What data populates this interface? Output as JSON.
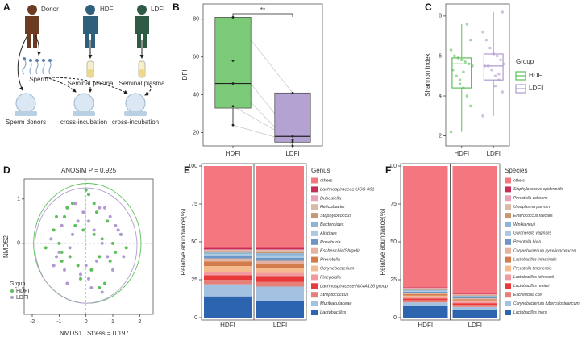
{
  "diagram": {
    "panel": "A",
    "nodes": [
      {
        "label": "Donor"
      },
      {
        "label": "HDFI"
      },
      {
        "label": "LDFI"
      },
      {
        "label": "Sperm"
      },
      {
        "label": "Seminal plasma"
      },
      {
        "label": "Seminal plasma"
      },
      {
        "label": "Sperm donors"
      },
      {
        "label": "cross-incubation"
      },
      {
        "label": "cross-incubation"
      }
    ]
  },
  "chart_data": [
    {
      "panel": "B",
      "type": "box",
      "box_style": "filled",
      "y_label": "DFI",
      "categories": [
        "HDFI",
        "LDFI"
      ],
      "colors": [
        "#7ccb78",
        "#b4a2d2"
      ],
      "boxes": [
        {
          "min": 24,
          "q1": 33,
          "median": 46,
          "q3": 81,
          "max": 81
        },
        {
          "min": 13,
          "q1": 15,
          "median": 18,
          "q3": 41,
          "max": 41
        }
      ],
      "points": [
        [
          81,
          58,
          46,
          34,
          24
        ],
        [
          41,
          18,
          13,
          16,
          15
        ]
      ],
      "paired": true,
      "significance": "**",
      "ylim": [
        13,
        88
      ],
      "yticks": [
        20,
        40,
        60,
        80
      ]
    },
    {
      "panel": "C",
      "type": "box",
      "box_style": "outline",
      "y_label": "Shannon index",
      "categories": [
        "HDFI",
        "LDFI"
      ],
      "colors": [
        "#5cbf5a",
        "#b09ad0"
      ],
      "boxes": [
        {
          "min": 2.2,
          "q1": 4.4,
          "median": 5.6,
          "q3": 5.9,
          "max": 7.6
        },
        {
          "min": 3.0,
          "q1": 4.8,
          "median": 5.5,
          "q3": 6.1,
          "max": 8.2
        }
      ],
      "points": [
        [
          2.2,
          3.5,
          4.0,
          4.4,
          4.8,
          5.0,
          5.3,
          5.5,
          5.6,
          5.7,
          5.8,
          5.9,
          6.0,
          6.3,
          6.8,
          7.6,
          5.2,
          4.6
        ],
        [
          3.0,
          4.2,
          4.8,
          5.0,
          5.3,
          5.5,
          5.5,
          5.6,
          5.8,
          6.0,
          6.1,
          6.4,
          6.8,
          7.2,
          8.2,
          5.1,
          4.5
        ]
      ],
      "legend_title": "Group",
      "legend": "right",
      "ylim": [
        1.5,
        8.6
      ],
      "yticks": [
        2,
        4,
        6,
        8
      ]
    },
    {
      "panel": "D",
      "type": "scatter",
      "title": "ANOSIM P = 0.925",
      "x_label": "NMDS1",
      "annotation": "Stress = 0.197",
      "y_label": "NMDS2",
      "legend_title": "Group",
      "legend": "bottom-left",
      "zero_lines": true,
      "series": [
        {
          "name": "HDFI",
          "color": "#5cbf5a",
          "x": [
            -1.2,
            -0.9,
            -0.8,
            -1.0,
            -0.5,
            -0.3,
            0.1,
            0.3,
            0.5,
            0.8,
            1.0,
            1.3,
            -1.5,
            -0.2,
            0.2,
            0.6,
            0.9,
            -0.7,
            -0.4,
            0.4,
            1.1,
            0.0,
            -1.1,
            0.7,
            -0.6,
            0.3,
            1.5,
            -0.1,
            0.5,
            -0.9
          ],
          "y": [
            0.3,
            -0.2,
            0.6,
            0.0,
            0.9,
            -0.5,
            1.1,
            0.2,
            -0.3,
            0.5,
            0.0,
            0.2,
            -0.1,
            -0.8,
            -0.6,
            0.1,
            -0.4,
            0.8,
            0.4,
            0.7,
            -0.2,
            1.2,
            0.6,
            -0.9,
            -0.3,
            0.9,
            -0.1,
            0.3,
            -1.0,
            -0.4
          ],
          "ellipse": {
            "cx": 0.05,
            "cy": 0.0,
            "rx": 2.0,
            "ry": 1.35
          }
        },
        {
          "name": "LDFI",
          "color": "#b09ad0",
          "x": [
            -1.3,
            -1.1,
            -0.9,
            -0.6,
            -0.2,
            0.1,
            0.4,
            0.7,
            1.0,
            1.2,
            1.4,
            -0.8,
            -0.4,
            0.2,
            0.6,
            0.9,
            -1.0,
            -0.5,
            0.0,
            0.5,
            1.1,
            -0.7,
            0.3,
            0.8,
            -0.3,
            1.3,
            -1.2,
            0.1,
            0.6,
            -0.1
          ],
          "y": [
            0.1,
            -0.3,
            0.4,
            -0.1,
            -0.7,
            0.5,
            -0.4,
            0.8,
            -0.6,
            0.3,
            -0.3,
            -0.6,
            0.9,
            -1.0,
            0.0,
            0.6,
            -0.2,
            0.2,
            -0.5,
            0.8,
            0.4,
            -0.9,
            0.3,
            -0.3,
            0.5,
            0.2,
            -0.5,
            -0.8,
            -1.1,
            0.7
          ],
          "ellipse": {
            "cx": 0.0,
            "cy": -0.05,
            "rx": 1.9,
            "ry": 1.3
          }
        }
      ],
      "xlim": [
        -2.3,
        2.5
      ],
      "xticks": [
        -2,
        -1,
        0,
        1,
        2
      ],
      "ylim": [
        -1.6,
        1.45
      ],
      "yticks": [
        -1,
        0,
        1
      ]
    },
    {
      "panel": "E",
      "type": "stacked_bar",
      "y_label": "Relative abundance(%)",
      "categories": [
        "HDFI",
        "LDFI"
      ],
      "legend_title": "Genus",
      "series": [
        {
          "name": "others",
          "color": "#f4777f",
          "values": [
            54,
            54
          ]
        },
        {
          "name": "Lachnospiraceae UCG 001",
          "color": "#c72e57",
          "values": [
            1,
            1
          ]
        },
        {
          "name": "Dubosiella",
          "color": "#e7a3b5",
          "values": [
            0.5,
            0.5
          ]
        },
        {
          "name": "Helicobacter",
          "color": "#dcb9a4",
          "values": [
            0.5,
            1
          ]
        },
        {
          "name": "Staphylococcus",
          "color": "#c99873",
          "values": [
            1,
            1
          ]
        },
        {
          "name": "Bacteroides",
          "color": "#8db6d6",
          "values": [
            1,
            1.5
          ]
        },
        {
          "name": "Alistipes",
          "color": "#aac9e0",
          "values": [
            1.5,
            1.5
          ]
        },
        {
          "name": "Roseburia",
          "color": "#6d96c4",
          "values": [
            1.5,
            2
          ]
        },
        {
          "name": "Escherichia/Shigella",
          "color": "#e3b3a0",
          "values": [
            2,
            2
          ]
        },
        {
          "name": "Prevotella",
          "color": "#d27b4b",
          "values": [
            3,
            3
          ]
        },
        {
          "name": "Corynebacterium",
          "color": "#f5bb8e",
          "values": [
            4,
            3
          ]
        },
        {
          "name": "Finegoldia",
          "color": "#f29aa0",
          "values": [
            2,
            2
          ]
        },
        {
          "name": "Lachnospiraceae NK4A136 group",
          "color": "#e83a3a",
          "values": [
            3,
            4
          ]
        },
        {
          "name": "Streptococcus",
          "color": "#e8807a",
          "values": [
            3,
            3
          ]
        },
        {
          "name": "Muribaculaceae",
          "color": "#a3c1e0",
          "values": [
            8,
            9.5
          ]
        },
        {
          "name": "Lactobacillus",
          "color": "#2d64b0",
          "values": [
            14,
            11
          ]
        }
      ],
      "ylim": [
        0,
        100
      ],
      "yticks": [
        0,
        25,
        50,
        75,
        100
      ]
    },
    {
      "panel": "F",
      "type": "stacked_bar",
      "y_label": "Relative abundance(%)",
      "categories": [
        "HDFI",
        "LDFI"
      ],
      "legend_title": "Species",
      "series": [
        {
          "name": "others",
          "color": "#f4777f",
          "values": [
            80,
            84.3
          ]
        },
        {
          "name": "Staphylococcus epidermidis",
          "color": "#c72e57",
          "values": [
            0.4,
            0.3
          ]
        },
        {
          "name": "Prevotella colorans",
          "color": "#e7a3b5",
          "values": [
            0.3,
            0.3
          ]
        },
        {
          "name": "Ureaplasma parvum",
          "color": "#dcb9a4",
          "values": [
            0.5,
            0.4
          ]
        },
        {
          "name": "Enterococcus faecalis",
          "color": "#c99873",
          "values": [
            0.5,
            0.4
          ]
        },
        {
          "name": "Winkia neuii",
          "color": "#8db6d6",
          "values": [
            0.5,
            0.5
          ]
        },
        {
          "name": "Gardnerella vaginalis",
          "color": "#aac9e0",
          "values": [
            0.7,
            0.5
          ]
        },
        {
          "name": "Prevotella bivia",
          "color": "#6d96c4",
          "values": [
            0.8,
            0.6
          ]
        },
        {
          "name": "Corynebacterium pyruviciproducen",
          "color": "#e3b3a0",
          "values": [
            0.8,
            0.6
          ]
        },
        {
          "name": "Lactobacillus intestinalis",
          "color": "#d27b4b",
          "values": [
            1,
            0.8
          ]
        },
        {
          "name": "Prevotella timonensis",
          "color": "#f5bb8e",
          "values": [
            1,
            0.8
          ]
        },
        {
          "name": "Lactobacillus johnsonii",
          "color": "#f29aa0",
          "values": [
            1,
            1
          ]
        },
        {
          "name": "Lactobacillus reuteri",
          "color": "#e83a3a",
          "values": [
            1,
            1
          ]
        },
        {
          "name": "Escherichia coli",
          "color": "#e8807a",
          "values": [
            1.5,
            1.5
          ]
        },
        {
          "name": "Corynebacterium tuberculostearicum",
          "color": "#a3c1e0",
          "values": [
            2,
            2
          ]
        },
        {
          "name": "Lactobacillus iners",
          "color": "#2d64b0",
          "values": [
            8,
            5
          ]
        }
      ],
      "ylim": [
        0,
        100
      ],
      "yticks": [
        0,
        25,
        50,
        75,
        100
      ]
    }
  ]
}
